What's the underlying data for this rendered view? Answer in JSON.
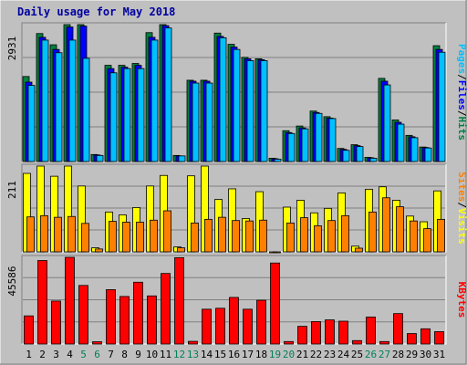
{
  "chart_data": {
    "title": "Daily usage for May 2018",
    "categories": [
      "1",
      "2",
      "3",
      "4",
      "5",
      "6",
      "7",
      "8",
      "9",
      "10",
      "11",
      "12",
      "13",
      "14",
      "15",
      "16",
      "17",
      "18",
      "19",
      "20",
      "21",
      "22",
      "23",
      "24",
      "25",
      "26",
      "27",
      "28",
      "29",
      "30",
      "31"
    ],
    "weekend_days": [
      "5",
      "6",
      "12",
      "13",
      "19",
      "20",
      "26",
      "27"
    ],
    "panels": [
      {
        "type": "bar",
        "max_label": "2931",
        "ymax": 2931,
        "legend": [
          {
            "name": "Pages",
            "color": "#00c0ff"
          },
          {
            "name": "Files",
            "color": "#0000ff"
          },
          {
            "name": "Hits",
            "color": "#008040"
          }
        ],
        "series": [
          {
            "name": "Hits",
            "color": "#008040",
            "values": [
              1820,
              2740,
              2500,
              2980,
              2980,
              150,
              2060,
              2060,
              2100,
              2760,
              2960,
              130,
              1740,
              1740,
              2750,
              2510,
              2230,
              2200,
              70,
              660,
              760,
              1080,
              960,
              280,
              360,
              90,
              1780,
              890,
              560,
              310,
              2480
            ]
          },
          {
            "name": "Files",
            "color": "#0000ff",
            "values": [
              1700,
              2660,
              2400,
              2880,
              2900,
              140,
              1990,
              2020,
              2060,
              2660,
              2910,
              120,
              1720,
              1720,
              2680,
              2450,
              2200,
              2180,
              60,
              620,
              720,
              1050,
              930,
              260,
              340,
              80,
              1720,
              840,
              530,
              300,
              2400
            ]
          },
          {
            "name": "Pages",
            "color": "#00c0ff",
            "values": [
              1630,
              2600,
              2330,
              2600,
              2210,
              130,
              1900,
              1990,
              1990,
              2600,
              2860,
              120,
              1680,
              1680,
              2650,
              2400,
              2160,
              2160,
              50,
              600,
              700,
              1030,
              920,
              240,
              320,
              70,
              1640,
              800,
              510,
              290,
              2340
            ]
          }
        ]
      },
      {
        "type": "bar",
        "max_label": "211",
        "ymax": 211,
        "legend": [
          {
            "name": "Sites",
            "color": "#ff8000"
          },
          {
            "name": "Visits",
            "color": "#ffff00"
          }
        ],
        "series": [
          {
            "name": "Visits",
            "color": "#ffff00",
            "values": [
              193,
              211,
              186,
              220,
              162,
              10,
              98,
              91,
              109,
              162,
              188,
              12,
              187,
              221,
              129,
              155,
              82,
              148,
              0,
              110,
              127,
              96,
              107,
              145,
              14,
              154,
              160,
              127,
              88,
              74,
              150
            ]
          },
          {
            "name": "Sites",
            "color": "#ff8000",
            "values": [
              86,
              89,
              85,
              87,
              70,
              7,
              75,
              73,
              73,
              78,
              101,
              10,
              71,
              80,
              85,
              77,
              76,
              78,
              0,
              71,
              84,
              64,
              77,
              89,
              9,
              98,
              133,
              111,
              76,
              57,
              80
            ]
          }
        ]
      },
      {
        "type": "bar",
        "max_label": "45586",
        "ymax": 45586,
        "legend": [
          {
            "name": "KBytes",
            "color": "#ff0000"
          }
        ],
        "series": [
          {
            "name": "KBytes",
            "color": "#ff0000",
            "values": [
              14800,
              43900,
              22600,
              46800,
              30800,
              1200,
              28600,
              25000,
              32500,
              25300,
              37100,
              45400,
              1400,
              18300,
              18800,
              24500,
              18300,
              23000,
              42600,
              1300,
              9300,
              11800,
              12700,
              12000,
              1800,
              14200,
              1300,
              16000,
              5500,
              8000,
              6500
            ]
          }
        ]
      }
    ]
  }
}
